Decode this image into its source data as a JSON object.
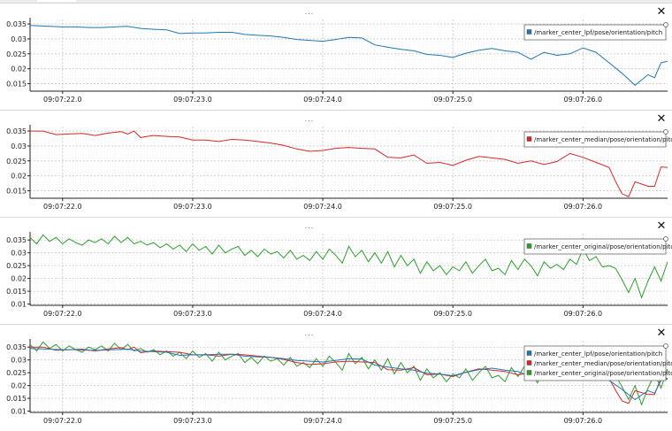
{
  "toolbar": {
    "dots_label": "...",
    "close_label": "✕"
  },
  "chart_data": [
    {
      "type": "line",
      "title": "",
      "xlabel": "",
      "ylabel": "",
      "x_ticks": [
        "09:07:22.0",
        "09:07:23.0",
        "09:07:24.0",
        "09:07:25.0",
        "09:07:26.0"
      ],
      "x_tick_seconds": [
        22.0,
        23.0,
        24.0,
        25.0,
        26.0
      ],
      "xlim_seconds": [
        21.75,
        26.65
      ],
      "y_ticks": [
        0.035,
        0.03,
        0.025,
        0.02,
        0.015
      ],
      "y_tick_labels": [
        "0.035",
        "0.03",
        "0.025",
        "0.02",
        "0.015"
      ],
      "ylim": [
        0.0125,
        0.0365
      ],
      "grid": true,
      "legend_position": "top-right",
      "series": [
        {
          "name": "/marker_center_lpf/pose/orientation/pitch",
          "color": "#1f77b4",
          "x": [
            21.75,
            21.9,
            22.0,
            22.1,
            22.2,
            22.3,
            22.4,
            22.5,
            22.6,
            22.7,
            22.8,
            22.9,
            23.0,
            23.1,
            23.2,
            23.3,
            23.4,
            23.5,
            23.6,
            23.7,
            23.8,
            23.9,
            24.0,
            24.1,
            24.2,
            24.3,
            24.4,
            24.5,
            24.6,
            24.7,
            24.8,
            24.9,
            25.0,
            25.1,
            25.2,
            25.3,
            25.4,
            25.5,
            25.6,
            25.7,
            25.8,
            25.9,
            26.0,
            26.1,
            26.2,
            26.3,
            26.4,
            26.5,
            26.55,
            26.6,
            26.65
          ],
          "y": [
            0.0345,
            0.0342,
            0.034,
            0.034,
            0.0338,
            0.0338,
            0.034,
            0.0342,
            0.0335,
            0.0332,
            0.033,
            0.0318,
            0.032,
            0.032,
            0.0322,
            0.0322,
            0.0315,
            0.0312,
            0.031,
            0.0305,
            0.0298,
            0.0295,
            0.0292,
            0.0298,
            0.0305,
            0.0303,
            0.028,
            0.0272,
            0.0265,
            0.026,
            0.0248,
            0.0245,
            0.0238,
            0.0252,
            0.0262,
            0.0268,
            0.026,
            0.0255,
            0.0232,
            0.0255,
            0.0245,
            0.025,
            0.027,
            0.0255,
            0.022,
            0.0185,
            0.0145,
            0.018,
            0.017,
            0.022,
            0.0225
          ]
        }
      ]
    },
    {
      "type": "line",
      "title": "",
      "xlabel": "",
      "ylabel": "",
      "x_ticks": [
        "09:07:22.0",
        "09:07:23.0",
        "09:07:24.0",
        "09:07:25.0",
        "09:07:26.0"
      ],
      "x_tick_seconds": [
        22.0,
        23.0,
        24.0,
        25.0,
        26.0
      ],
      "xlim_seconds": [
        21.75,
        26.65
      ],
      "y_ticks": [
        0.035,
        0.03,
        0.025,
        0.02,
        0.015
      ],
      "y_tick_labels": [
        "0.035",
        "0.03",
        "0.025",
        "0.02",
        "0.015"
      ],
      "ylim": [
        0.0125,
        0.0365
      ],
      "grid": true,
      "legend_position": "top-right",
      "series": [
        {
          "name": "/marker_center_median/pose/orientation/pitch",
          "color": "#d62728",
          "x": [
            21.75,
            21.85,
            21.95,
            22.05,
            22.15,
            22.25,
            22.35,
            22.45,
            22.5,
            22.55,
            22.6,
            22.65,
            22.7,
            22.8,
            22.9,
            23.0,
            23.1,
            23.2,
            23.3,
            23.4,
            23.5,
            23.6,
            23.7,
            23.8,
            23.9,
            24.0,
            24.1,
            24.2,
            24.3,
            24.4,
            24.5,
            24.6,
            24.7,
            24.8,
            24.9,
            25.0,
            25.1,
            25.2,
            25.3,
            25.4,
            25.5,
            25.6,
            25.7,
            25.8,
            25.9,
            26.0,
            26.1,
            26.2,
            26.25,
            26.3,
            26.35,
            26.4,
            26.5,
            26.55,
            26.6,
            26.65
          ],
          "y": [
            0.035,
            0.035,
            0.0338,
            0.034,
            0.0342,
            0.0335,
            0.0343,
            0.0348,
            0.034,
            0.035,
            0.0328,
            0.0332,
            0.0335,
            0.0332,
            0.033,
            0.032,
            0.032,
            0.0315,
            0.0322,
            0.032,
            0.0315,
            0.031,
            0.0302,
            0.029,
            0.0282,
            0.0285,
            0.0292,
            0.0295,
            0.0292,
            0.029,
            0.0262,
            0.026,
            0.027,
            0.0242,
            0.0245,
            0.0235,
            0.0252,
            0.0265,
            0.026,
            0.0255,
            0.0242,
            0.025,
            0.0238,
            0.0248,
            0.0275,
            0.0262,
            0.0245,
            0.0228,
            0.0182,
            0.014,
            0.013,
            0.018,
            0.0165,
            0.0165,
            0.023,
            0.0228
          ]
        }
      ]
    },
    {
      "type": "line",
      "title": "",
      "xlabel": "",
      "ylabel": "",
      "x_ticks": [
        "09:07:22.0",
        "09:07:23.0",
        "09:07:24.0",
        "09:07:25.0",
        "09:07:26.0"
      ],
      "x_tick_seconds": [
        22.0,
        23.0,
        24.0,
        25.0,
        26.0
      ],
      "xlim_seconds": [
        21.75,
        26.65
      ],
      "y_ticks": [
        0.035,
        0.03,
        0.025,
        0.02,
        0.015,
        0.01
      ],
      "y_tick_labels": [
        "0.035",
        "0.03",
        "0.025",
        "0.02",
        "0.015",
        "0.01"
      ],
      "ylim": [
        0.0095,
        0.0375
      ],
      "grid": true,
      "legend_position": "top-right",
      "series": [
        {
          "name": "/marker_center_original/pose/orientation/pitch",
          "color": "#2ca02c",
          "x": [
            21.75,
            21.8,
            21.85,
            21.9,
            21.95,
            22.0,
            22.05,
            22.1,
            22.15,
            22.2,
            22.25,
            22.3,
            22.35,
            22.4,
            22.45,
            22.5,
            22.55,
            22.6,
            22.65,
            22.7,
            22.75,
            22.8,
            22.85,
            22.9,
            22.95,
            23.0,
            23.05,
            23.1,
            23.15,
            23.2,
            23.25,
            23.3,
            23.35,
            23.4,
            23.45,
            23.5,
            23.55,
            23.6,
            23.65,
            23.7,
            23.75,
            23.8,
            23.85,
            23.9,
            23.95,
            24.0,
            24.05,
            24.1,
            24.15,
            24.2,
            24.25,
            24.3,
            24.35,
            24.4,
            24.45,
            24.5,
            24.55,
            24.6,
            24.65,
            24.7,
            24.75,
            24.8,
            24.85,
            24.9,
            24.95,
            25.0,
            25.05,
            25.1,
            25.15,
            25.2,
            25.25,
            25.3,
            25.35,
            25.4,
            25.45,
            25.5,
            25.55,
            25.6,
            25.65,
            25.7,
            25.75,
            25.8,
            25.85,
            25.9,
            25.95,
            26.0,
            26.05,
            26.1,
            26.15,
            26.2,
            26.25,
            26.3,
            26.35,
            26.4,
            26.45,
            26.5,
            26.55,
            26.6,
            26.65
          ],
          "y": [
            0.036,
            0.0335,
            0.037,
            0.0345,
            0.036,
            0.0335,
            0.0355,
            0.034,
            0.033,
            0.035,
            0.034,
            0.0355,
            0.0335,
            0.0365,
            0.034,
            0.036,
            0.0335,
            0.0345,
            0.033,
            0.034,
            0.032,
            0.0335,
            0.0315,
            0.033,
            0.0305,
            0.0335,
            0.031,
            0.0325,
            0.0295,
            0.033,
            0.03,
            0.0315,
            0.0325,
            0.029,
            0.031,
            0.0285,
            0.0315,
            0.0295,
            0.0305,
            0.028,
            0.031,
            0.0275,
            0.029,
            0.027,
            0.0305,
            0.0275,
            0.0315,
            0.029,
            0.026,
            0.0325,
            0.0285,
            0.031,
            0.0265,
            0.03,
            0.026,
            0.0305,
            0.0245,
            0.029,
            0.025,
            0.0275,
            0.022,
            0.0265,
            0.023,
            0.025,
            0.0215,
            0.0245,
            0.023,
            0.0265,
            0.022,
            0.025,
            0.0275,
            0.023,
            0.024,
            0.0215,
            0.027,
            0.0235,
            0.0275,
            0.025,
            0.021,
            0.0265,
            0.024,
            0.0255,
            0.0235,
            0.0275,
            0.0255,
            0.0315,
            0.027,
            0.0285,
            0.0245,
            0.025,
            0.024,
            0.0195,
            0.0145,
            0.02,
            0.0125,
            0.019,
            0.0245,
            0.019,
            0.0265
          ]
        }
      ]
    },
    {
      "type": "line",
      "title": "",
      "xlabel": "",
      "ylabel": "",
      "x_ticks": [
        "09:07:22.0",
        "09:07:23.0",
        "09:07:24.0",
        "09:07:25.0",
        "09:07:26.0"
      ],
      "x_tick_seconds": [
        22.0,
        23.0,
        24.0,
        25.0,
        26.0
      ],
      "xlim_seconds": [
        21.75,
        26.65
      ],
      "y_ticks": [
        0.035,
        0.03,
        0.025,
        0.02,
        0.015,
        0.01
      ],
      "y_tick_labels": [
        "0.035",
        "0.03",
        "0.025",
        "0.02",
        "0.015",
        "0.01"
      ],
      "ylim": [
        0.0095,
        0.0375
      ],
      "grid": true,
      "legend_position": "top-right",
      "series_refs": [
        2,
        1,
        0
      ],
      "legend_names": [
        "/marker_center_lpf/pose/orientation/pitch",
        "/marker_center_median/pose/orientation/pitch",
        "/marker_center_original/pose/orientation/pitch"
      ],
      "legend_colors": [
        "#1f77b4",
        "#d62728",
        "#2ca02c"
      ]
    }
  ]
}
